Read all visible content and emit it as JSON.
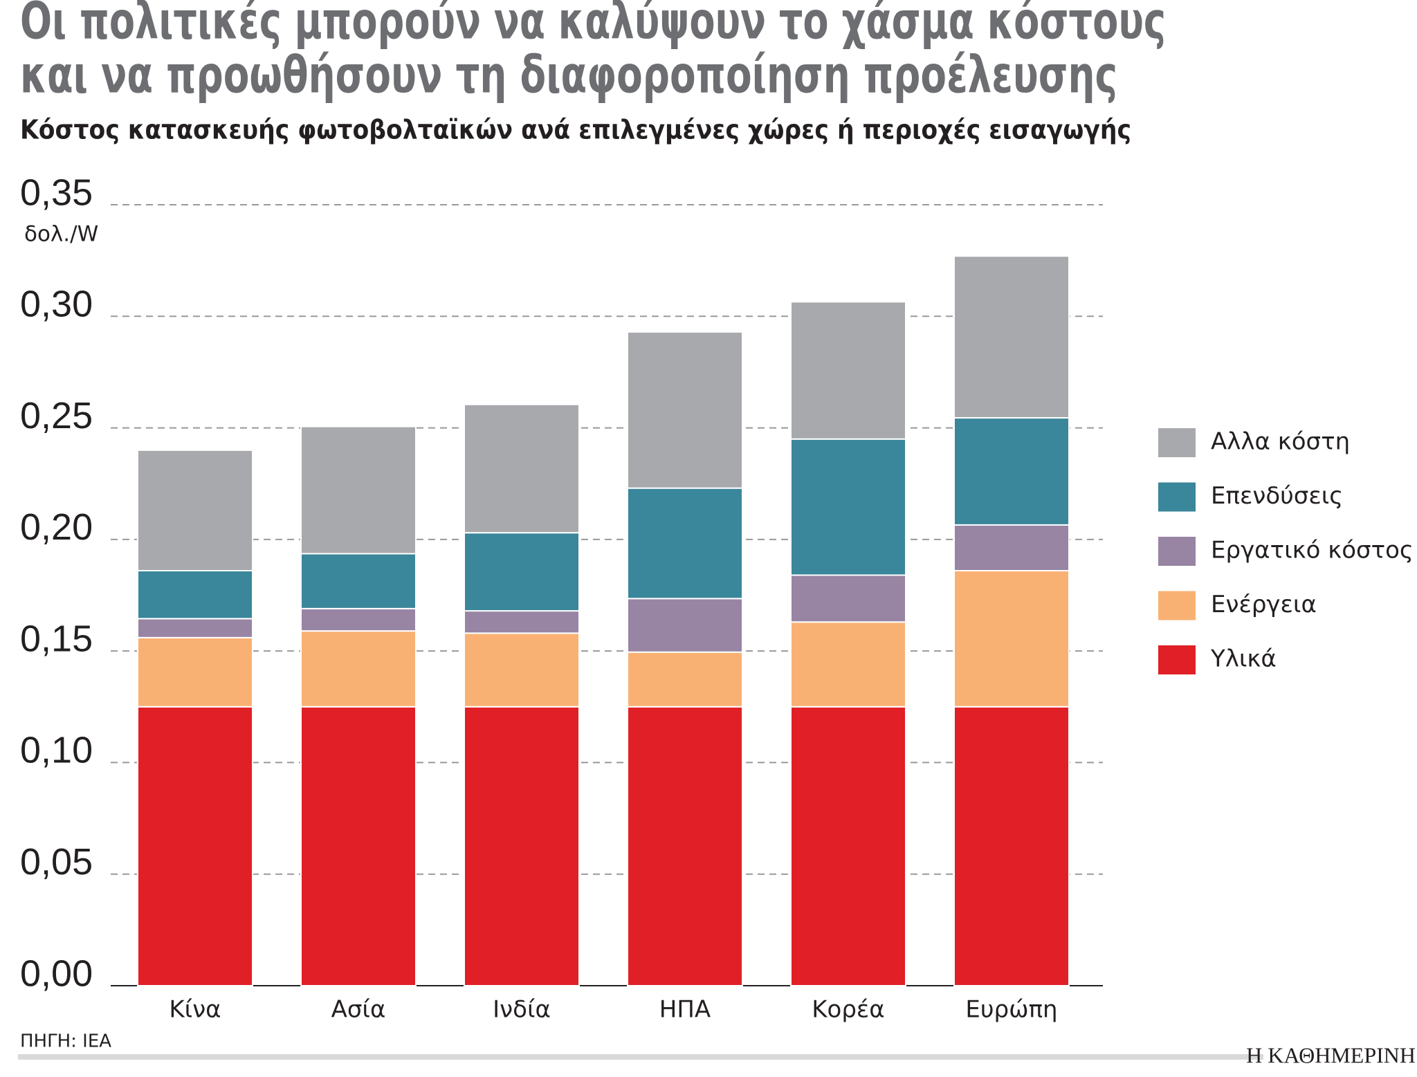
{
  "chart_data": {
    "type": "stacked_bar",
    "title": [
      "Οι πολιτικές μπορούν να καλύψουν το χάσμα κόστους",
      "και να προωθήσουν τη διαφοροποίηση προέλευσης"
    ],
    "subtitle": "Κόστος κατασκευής φωτοβολταϊκών ανά επιλεγμένες χώρες ή περιοχές εισαγωγής",
    "y_unit": "δολ./W",
    "categories": [
      "Κίνα",
      "Ασία",
      "Ινδία",
      "ΗΠΑ",
      "Κορέα",
      "Ευρώπη"
    ],
    "series": [
      {
        "name": "Υλικά",
        "color": "#e01f26",
        "values": [
          0.125,
          0.125,
          0.125,
          0.125,
          0.125,
          0.125
        ]
      },
      {
        "name": "Ενέργεια",
        "color": "#f9b173",
        "values": [
          0.031,
          0.034,
          0.033,
          0.0245,
          0.038,
          0.061
        ]
      },
      {
        "name": "Εργατικό κόστος",
        "color": "#9884a3",
        "values": [
          0.0085,
          0.01,
          0.01,
          0.024,
          0.021,
          0.0205
        ]
      },
      {
        "name": "Επενδύσεις",
        "color": "#3a869a",
        "values": [
          0.0215,
          0.0246,
          0.035,
          0.0495,
          0.061,
          0.048
        ]
      },
      {
        "name": "Αλλα κόστη",
        "color": "#a8a9ad",
        "values": [
          0.054,
          0.057,
          0.0575,
          0.07,
          0.0615,
          0.0725
        ]
      }
    ],
    "ylim": [
      0,
      0.35
    ],
    "yticks": [
      {
        "value": 0,
        "label": "0,00"
      },
      {
        "value": 0.05,
        "label": "0,05"
      },
      {
        "value": 0.1,
        "label": "0,10"
      },
      {
        "value": 0.15,
        "label": "0,15"
      },
      {
        "value": 0.2,
        "label": "0,20"
      },
      {
        "value": 0.25,
        "label": "0,25"
      },
      {
        "value": 0.3,
        "label": "0,30"
      },
      {
        "value": 0.35,
        "label": "0,35"
      }
    ],
    "grid": true,
    "legend": "right",
    "source": "ΠΗΓΗ: IEA",
    "brand": "Η ΚΑΘΗΜΕΡΙΝΗ"
  }
}
